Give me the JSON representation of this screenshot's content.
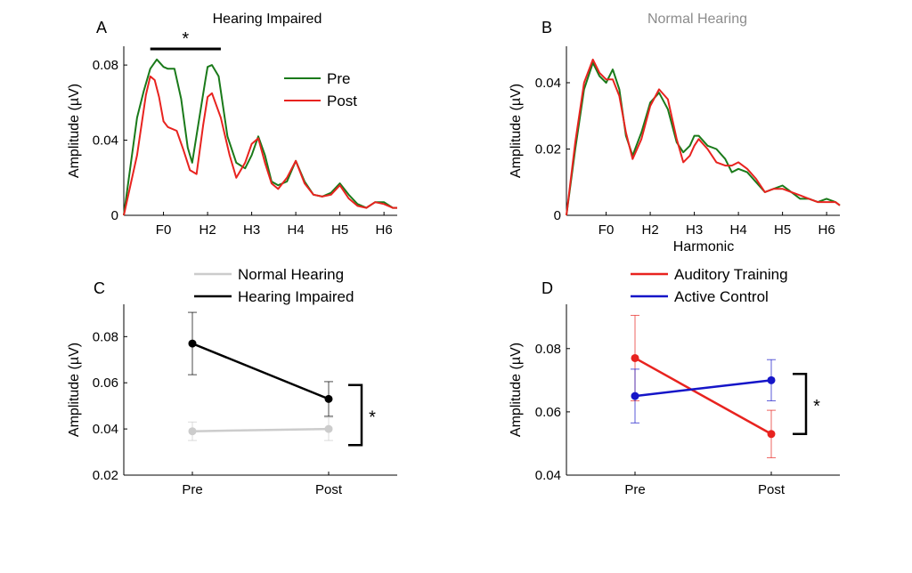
{
  "chart_data": [
    {
      "panel": "A",
      "type": "line",
      "title": "Hearing Impaired",
      "title_color": "#000000",
      "xlabel": "",
      "ylabel": "Amplitude (µV)",
      "x_tick_labels": [
        "F0",
        "H2",
        "H3",
        "H4",
        "H5",
        "H6"
      ],
      "x_tick_positions": [
        1,
        2,
        3,
        4,
        5,
        6
      ],
      "xlim": [
        0.1,
        6.3
      ],
      "ylim": [
        0,
        0.09
      ],
      "y_ticks": [
        0,
        0.04,
        0.08
      ],
      "y_tick_labels": [
        "0",
        "0.04",
        "0.08"
      ],
      "legend": {
        "placement": "top-right",
        "entries": [
          "Pre",
          "Post"
        ]
      },
      "significance": {
        "label": "*",
        "type": "horizontal-bar",
        "x_range": [
          0.7,
          2.3
        ]
      },
      "series": [
        {
          "name": "Pre",
          "color": "#1a7a1a",
          "x": [
            0.1,
            0.4,
            0.55,
            0.7,
            0.85,
            1.0,
            1.1,
            1.25,
            1.4,
            1.55,
            1.65,
            1.8,
            1.95,
            2.0,
            2.1,
            2.25,
            2.45,
            2.65,
            2.85,
            3.0,
            3.15,
            3.3,
            3.45,
            3.6,
            3.8,
            4.0,
            4.2,
            4.4,
            4.6,
            4.8,
            5.0,
            5.2,
            5.4,
            5.6,
            5.8,
            6.0,
            6.2,
            6.3
          ],
          "y": [
            0.0,
            0.052,
            0.066,
            0.078,
            0.083,
            0.079,
            0.078,
            0.078,
            0.062,
            0.036,
            0.028,
            0.05,
            0.072,
            0.079,
            0.08,
            0.074,
            0.042,
            0.028,
            0.025,
            0.032,
            0.042,
            0.032,
            0.018,
            0.016,
            0.018,
            0.029,
            0.018,
            0.011,
            0.01,
            0.012,
            0.017,
            0.011,
            0.006,
            0.004,
            0.007,
            0.007,
            0.004,
            0.004
          ]
        },
        {
          "name": "Post",
          "color": "#e8231f",
          "x": [
            0.1,
            0.4,
            0.6,
            0.7,
            0.8,
            0.9,
            1.0,
            1.1,
            1.3,
            1.45,
            1.6,
            1.75,
            1.9,
            2.0,
            2.1,
            2.3,
            2.5,
            2.65,
            2.85,
            3.0,
            3.15,
            3.3,
            3.45,
            3.6,
            3.8,
            4.0,
            4.2,
            4.4,
            4.6,
            4.8,
            5.0,
            5.2,
            5.4,
            5.6,
            5.8,
            6.0,
            6.2,
            6.3
          ],
          "y": [
            0.0,
            0.032,
            0.064,
            0.074,
            0.072,
            0.063,
            0.05,
            0.047,
            0.045,
            0.035,
            0.024,
            0.022,
            0.048,
            0.063,
            0.065,
            0.052,
            0.032,
            0.02,
            0.028,
            0.038,
            0.041,
            0.028,
            0.017,
            0.014,
            0.02,
            0.029,
            0.017,
            0.011,
            0.01,
            0.011,
            0.016,
            0.009,
            0.005,
            0.004,
            0.007,
            0.006,
            0.004,
            0.004
          ]
        }
      ]
    },
    {
      "panel": "B",
      "type": "line",
      "title": "Normal Hearing",
      "title_color": "#8c8c8c",
      "xlabel": "Harmonic",
      "ylabel": "Amplitude (µV)",
      "x_tick_labels": [
        "F0",
        "H2",
        "H3",
        "H4",
        "H5",
        "H6"
      ],
      "x_tick_positions": [
        1,
        2,
        3,
        4,
        5,
        6
      ],
      "xlim": [
        0.1,
        6.3
      ],
      "ylim": [
        0,
        0.051
      ],
      "y_ticks": [
        0,
        0.02,
        0.04
      ],
      "y_tick_labels": [
        "0",
        "0.02",
        "0.04"
      ],
      "series": [
        {
          "name": "Pre",
          "color": "#1a7a1a",
          "x": [
            0.1,
            0.3,
            0.5,
            0.7,
            0.85,
            1.0,
            1.15,
            1.3,
            1.45,
            1.6,
            1.8,
            2.0,
            2.2,
            2.4,
            2.6,
            2.75,
            2.9,
            3.0,
            3.1,
            3.3,
            3.5,
            3.7,
            3.85,
            4.0,
            4.2,
            4.4,
            4.6,
            4.8,
            5.0,
            5.2,
            5.4,
            5.6,
            5.8,
            6.0,
            6.2,
            6.3
          ],
          "y": [
            0.0,
            0.02,
            0.038,
            0.046,
            0.042,
            0.04,
            0.044,
            0.038,
            0.024,
            0.018,
            0.025,
            0.034,
            0.037,
            0.032,
            0.022,
            0.019,
            0.021,
            0.024,
            0.024,
            0.021,
            0.02,
            0.017,
            0.013,
            0.014,
            0.013,
            0.01,
            0.007,
            0.008,
            0.009,
            0.007,
            0.005,
            0.005,
            0.004,
            0.005,
            0.004,
            0.003
          ]
        },
        {
          "name": "Post",
          "color": "#e8231f",
          "x": [
            0.1,
            0.3,
            0.5,
            0.7,
            0.85,
            1.0,
            1.15,
            1.3,
            1.45,
            1.6,
            1.8,
            2.0,
            2.2,
            2.4,
            2.6,
            2.75,
            2.9,
            3.0,
            3.1,
            3.3,
            3.5,
            3.7,
            3.85,
            4.0,
            4.2,
            4.4,
            4.6,
            4.8,
            5.0,
            5.2,
            5.4,
            5.6,
            5.8,
            6.0,
            6.2,
            6.3
          ],
          "y": [
            0.0,
            0.022,
            0.04,
            0.047,
            0.043,
            0.041,
            0.041,
            0.036,
            0.025,
            0.017,
            0.023,
            0.033,
            0.038,
            0.035,
            0.023,
            0.016,
            0.018,
            0.021,
            0.023,
            0.02,
            0.016,
            0.015,
            0.015,
            0.016,
            0.014,
            0.011,
            0.007,
            0.008,
            0.008,
            0.007,
            0.006,
            0.005,
            0.004,
            0.004,
            0.004,
            0.003
          ]
        }
      ]
    },
    {
      "panel": "C",
      "type": "line",
      "title": "",
      "xlabel": "",
      "ylabel": "Amplitude (µV)",
      "categories": [
        "Pre",
        "Post"
      ],
      "ylim": [
        0.02,
        0.094
      ],
      "y_ticks": [
        0.02,
        0.04,
        0.06,
        0.08
      ],
      "y_tick_labels": [
        "0.02",
        "0.04",
        "0.06",
        "0.08"
      ],
      "legend": {
        "placement": "top-center",
        "entries": [
          "Normal Hearing",
          "Hearing Impaired"
        ]
      },
      "significance": {
        "label": "*",
        "type": "bracket",
        "y_range": [
          0.033,
          0.059
        ]
      },
      "series": [
        {
          "name": "Normal Hearing",
          "color": "#cccccc",
          "values": [
            0.039,
            0.04
          ],
          "errors": [
            0.004,
            0.005
          ]
        },
        {
          "name": "Hearing Impaired",
          "color": "#000000",
          "values": [
            0.077,
            0.053
          ],
          "errors": [
            0.0135,
            0.0075
          ]
        }
      ]
    },
    {
      "panel": "D",
      "type": "line",
      "title": "",
      "xlabel": "",
      "ylabel": "Amplitude (µV)",
      "categories": [
        "Pre",
        "Post"
      ],
      "ylim": [
        0.04,
        0.094
      ],
      "y_ticks": [
        0.04,
        0.06,
        0.08
      ],
      "y_tick_labels": [
        "0.04",
        "0.06",
        "0.08"
      ],
      "legend": {
        "placement": "top-center",
        "entries": [
          "Auditory Training",
          "Active Control"
        ]
      },
      "significance": {
        "label": "*",
        "type": "bracket",
        "y_range": [
          0.053,
          0.072
        ]
      },
      "series": [
        {
          "name": "Auditory Training",
          "color": "#e8231f",
          "values": [
            0.077,
            0.053
          ],
          "errors": [
            0.0135,
            0.0075
          ]
        },
        {
          "name": "Active Control",
          "color": "#1515c8",
          "values": [
            0.065,
            0.07
          ],
          "errors": [
            0.0085,
            0.0065
          ]
        }
      ]
    }
  ]
}
